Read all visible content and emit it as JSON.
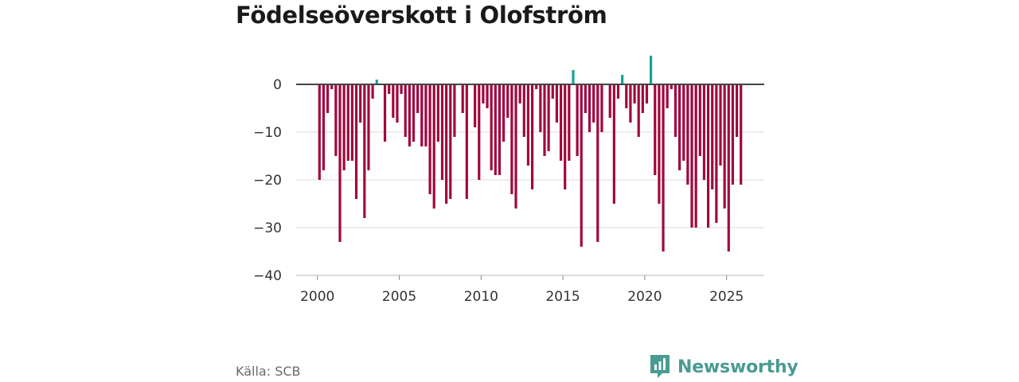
{
  "title": "Födelseöverskott i Olofström",
  "source": "Källa: SCB",
  "brand": {
    "name": "Newsworthy",
    "icon": "newsworthy-logo-icon",
    "color": "#4a9b91"
  },
  "colors": {
    "negative": "#a0073e",
    "positive": "#13a396",
    "zero_line": "#444444",
    "grid": "#d9d9d9"
  },
  "chart_data": {
    "type": "bar",
    "title": "Födelseöverskott i Olofström",
    "xlabel": "",
    "ylabel": "",
    "ylim": [
      -40,
      6
    ],
    "yticks": [
      0,
      -10,
      -20,
      -30,
      -40
    ],
    "ytick_labels": [
      "0",
      "−10",
      "−20",
      "−30",
      "−40"
    ],
    "xlim": [
      1998.7,
      2027.3
    ],
    "xticks": [
      2000,
      2005,
      2010,
      2015,
      2020,
      2025
    ],
    "xtick_labels": [
      "2000",
      "2005",
      "2010",
      "2015",
      "2020",
      "2025"
    ],
    "bar_period": "quarter",
    "x": [
      2000.125,
      2000.375,
      2000.625,
      2000.875,
      2001.125,
      2001.375,
      2001.625,
      2001.875,
      2002.125,
      2002.375,
      2002.625,
      2002.875,
      2003.125,
      2003.375,
      2003.625,
      2003.875,
      2004.125,
      2004.375,
      2004.625,
      2004.875,
      2005.125,
      2005.375,
      2005.625,
      2005.875,
      2006.125,
      2006.375,
      2006.625,
      2006.875,
      2007.125,
      2007.375,
      2007.625,
      2007.875,
      2008.125,
      2008.375,
      2008.625,
      2008.875,
      2009.125,
      2009.375,
      2009.625,
      2009.875,
      2010.125,
      2010.375,
      2010.625,
      2010.875,
      2011.125,
      2011.375,
      2011.625,
      2011.875,
      2012.125,
      2012.375,
      2012.625,
      2012.875,
      2013.125,
      2013.375,
      2013.625,
      2013.875,
      2014.125,
      2014.375,
      2014.625,
      2014.875,
      2015.125,
      2015.375,
      2015.625,
      2015.875,
      2016.125,
      2016.375,
      2016.625,
      2016.875,
      2017.125,
      2017.375,
      2017.625,
      2017.875,
      2018.125,
      2018.375,
      2018.625,
      2018.875,
      2019.125,
      2019.375,
      2019.625,
      2019.875,
      2020.125,
      2020.375,
      2020.625,
      2020.875,
      2021.125,
      2021.375,
      2021.625,
      2021.875,
      2022.125,
      2022.375,
      2022.625,
      2022.875,
      2023.125,
      2023.375,
      2023.625,
      2023.875,
      2024.125,
      2024.375,
      2024.625,
      2024.875,
      2025.125,
      2025.375,
      2025.625,
      2025.875
    ],
    "values": [
      -20,
      -18,
      -6,
      -1,
      -15,
      -33,
      -18,
      -16,
      -16,
      -24,
      -8,
      -28,
      -18,
      -3,
      1,
      0,
      -12,
      -2,
      -7,
      -8,
      -2,
      -11,
      -13,
      -12,
      -6,
      -13,
      -13,
      -23,
      -26,
      -12,
      -20,
      -25,
      -24,
      -11,
      0,
      -6,
      -24,
      0,
      -9,
      -20,
      -4,
      -5,
      -18,
      -19,
      -19,
      -12,
      -7,
      -23,
      -26,
      -4,
      -11,
      -17,
      -22,
      -1,
      -10,
      -15,
      -14,
      -3,
      -8,
      -16,
      -22,
      -16,
      3,
      -15,
      -34,
      -6,
      -10,
      -8,
      -33,
      -10,
      0,
      -7,
      -25,
      -3,
      2,
      -5,
      -8,
      -4,
      -11,
      -6,
      -4,
      6,
      -19,
      -25,
      -35,
      -5,
      -1,
      -11,
      -18,
      -16,
      -21,
      -30,
      -30,
      -15,
      -20,
      -30,
      -22,
      -29,
      -17,
      -26,
      -35,
      -21,
      -11,
      -21
    ]
  }
}
